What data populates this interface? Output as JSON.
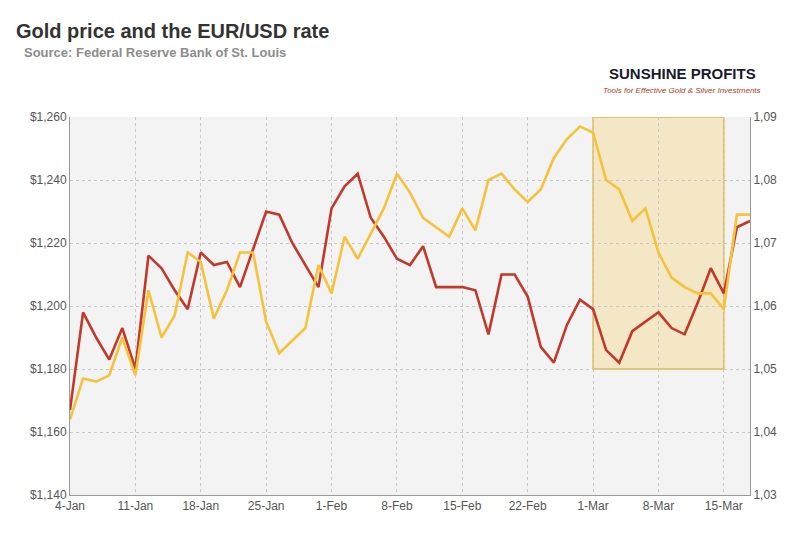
{
  "chart_data": {
    "type": "line",
    "title": "Gold price and the EUR/USD rate",
    "subtitle": "Source: Federal Reserve Bank of St. Louis",
    "annotations": [
      "SUNSHINE PROFITS",
      "Tools for Effective Gold & Silver Investments"
    ],
    "categories": [
      "4-Jan",
      null,
      null,
      null,
      null,
      "11-Jan",
      null,
      null,
      null,
      null,
      "18-Jan",
      null,
      null,
      null,
      null,
      "25-Jan",
      null,
      null,
      null,
      null,
      "1-Feb",
      null,
      null,
      null,
      null,
      "8-Feb",
      null,
      null,
      null,
      null,
      "15-Feb",
      null,
      null,
      null,
      null,
      "22-Feb",
      null,
      null,
      null,
      null,
      "1-Mar",
      null,
      null,
      null,
      null,
      "8-Mar",
      null,
      null,
      null,
      null,
      "15-Mar",
      null,
      null
    ],
    "series": [
      {
        "color": "#c0392b",
        "values": [
          1167,
          1198,
          1190,
          1183,
          1193,
          1180,
          1216,
          1212,
          1205,
          1199,
          1217,
          1213,
          1214,
          1206,
          1218,
          1230,
          1229,
          1220,
          1213,
          1206,
          1231,
          1238,
          1242,
          1228,
          1222,
          1215,
          1213,
          1219,
          1206,
          1206,
          1206,
          1205,
          1191,
          1210,
          1210,
          1203,
          1187,
          1182,
          1194,
          1202,
          1199,
          1186,
          1182,
          1192,
          1195,
          1198,
          1193,
          1191,
          1201,
          1212,
          1204,
          1225,
          1227
        ]
      },
      {
        "color": "#f5c33b",
        "axis": "y2",
        "values": [
          1.042,
          1.0485,
          1.048,
          1.049,
          1.055,
          1.049,
          1.0625,
          1.055,
          1.0585,
          1.0685,
          1.067,
          1.058,
          1.0625,
          1.0685,
          1.0685,
          1.0575,
          1.0525,
          1.0545,
          1.0565,
          1.0665,
          1.062,
          1.071,
          1.0675,
          1.0715,
          1.0755,
          1.081,
          1.078,
          1.074,
          1.0725,
          1.071,
          1.0755,
          1.072,
          1.08,
          1.081,
          1.0785,
          1.0765,
          1.0785,
          1.0835,
          1.0865,
          1.0885,
          1.0875,
          1.08,
          1.0785,
          1.0735,
          1.0755,
          1.0685,
          1.0645,
          1.063,
          1.062,
          1.062,
          1.0595,
          1.0745,
          1.0745
        ]
      }
    ],
    "ylim": [
      1140,
      1260
    ],
    "yticks": [
      {
        "value": 1140,
        "label": "$1,140"
      },
      {
        "value": 1160,
        "label": "$1,160"
      },
      {
        "value": 1180,
        "label": "$1,180"
      },
      {
        "value": 1200,
        "label": "$1,200"
      },
      {
        "value": 1220,
        "label": "$1,220"
      },
      {
        "value": 1240,
        "label": "$1,240"
      },
      {
        "value": 1260,
        "label": "$1,260"
      }
    ],
    "y2lim": [
      1.03,
      1.09
    ],
    "y2ticks": [
      {
        "value": 1.03,
        "label": "1,03"
      },
      {
        "value": 1.04,
        "label": "1,04"
      },
      {
        "value": 1.05,
        "label": "1,05"
      },
      {
        "value": 1.06,
        "label": "1,06"
      },
      {
        "value": 1.07,
        "label": "1,07"
      },
      {
        "value": 1.08,
        "label": "1,08"
      },
      {
        "value": 1.09,
        "label": "1,09"
      }
    ],
    "highlight": {
      "from": "1-Mar",
      "to": "15-Mar",
      "ylim": [
        1180,
        1260
      ]
    },
    "grid": true
  }
}
